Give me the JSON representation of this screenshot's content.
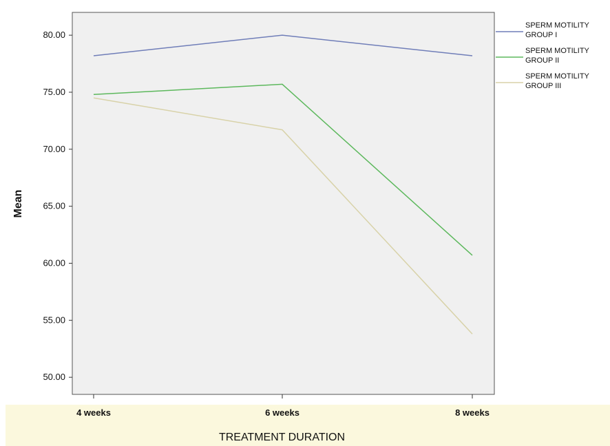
{
  "chart_data": {
    "type": "line",
    "title": "",
    "xlabel": "TREATMENT DURATION",
    "ylabel": "Mean",
    "categories": [
      "4 weeks",
      "6 weeks",
      "8 weeks"
    ],
    "ylim": [
      48.5,
      82.0
    ],
    "yticks": [
      "50.00",
      "55.00",
      "60.00",
      "65.00",
      "70.00",
      "75.00",
      "80.00"
    ],
    "grid": false,
    "legend_position": "right",
    "series": [
      {
        "name": "SPERM MOTILITY GROUP I",
        "legend_lines": [
          "SPERM MOTILITY",
          "GROUP I"
        ],
        "color": "#6f7db8",
        "values": [
          78.2,
          80.0,
          78.2
        ]
      },
      {
        "name": "SPERM MOTILITY GROUP II",
        "legend_lines": [
          "SPERM MOTILITY",
          "GROUP II"
        ],
        "color": "#5cb85c",
        "values": [
          74.8,
          75.7,
          60.7
        ]
      },
      {
        "name": "SPERM MOTILITY GROUP III",
        "legend_lines": [
          "SPERM MOTILITY",
          "GROUP III"
        ],
        "color": "#d8d2a8",
        "values": [
          74.5,
          71.7,
          53.8
        ]
      }
    ]
  }
}
